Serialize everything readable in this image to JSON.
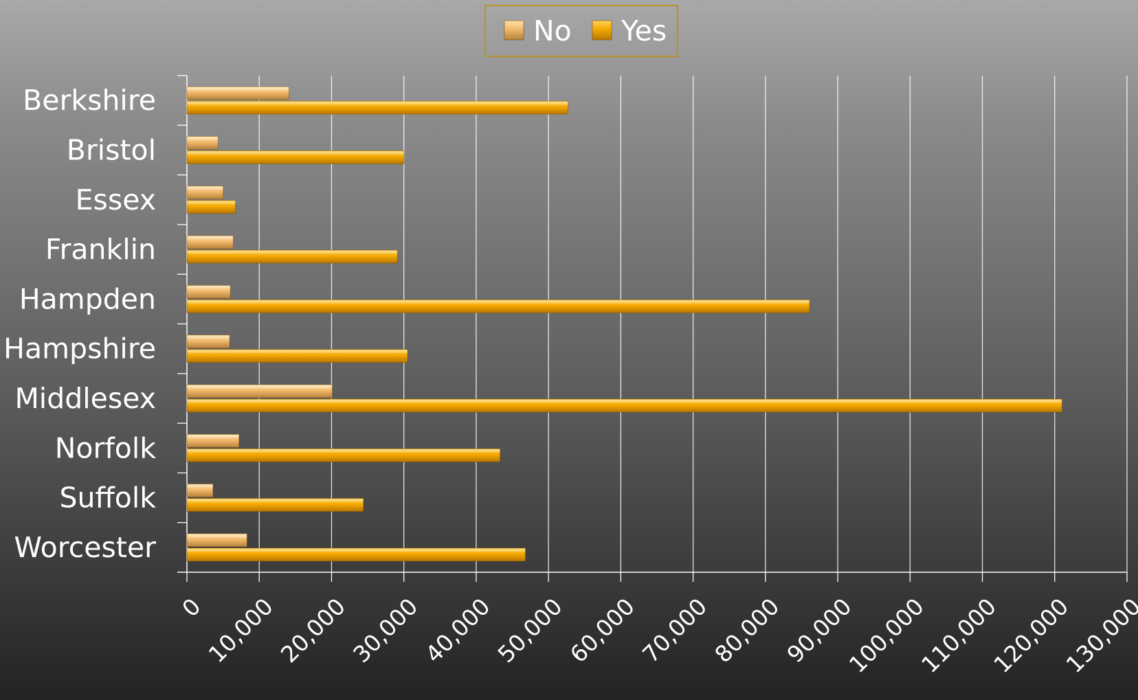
{
  "chart_data": {
    "type": "bar",
    "orientation": "horizontal",
    "categories": [
      "Berkshire",
      "Bristol",
      "Essex",
      "Franklin",
      "Hampden",
      "Hampshire",
      "Middlesex",
      "Norfolk",
      "Suffolk",
      "Worcester"
    ],
    "series": [
      {
        "name": "No",
        "values": [
          14100,
          4300,
          5000,
          6400,
          6000,
          5900,
          20100,
          7200,
          3600,
          8300
        ]
      },
      {
        "name": "Yes",
        "values": [
          52700,
          30000,
          6700,
          29100,
          86100,
          30500,
          121000,
          43300,
          24400,
          46800
        ]
      }
    ],
    "xlim": [
      0,
      130000
    ],
    "x_ticks": [
      "0",
      "10,000",
      "20,000",
      "30,000",
      "40,000",
      "50,000",
      "60,000",
      "70,000",
      "80,000",
      "90,000",
      "100,000",
      "110,000",
      "120,000",
      "130,000"
    ],
    "grid": true,
    "legend_position": "top-center",
    "colors": {
      "No": "#f2b96b",
      "Yes": "#f5a800",
      "legend_border": "#b8922a",
      "grid": "#ffffff",
      "text": "#ffffff"
    }
  }
}
